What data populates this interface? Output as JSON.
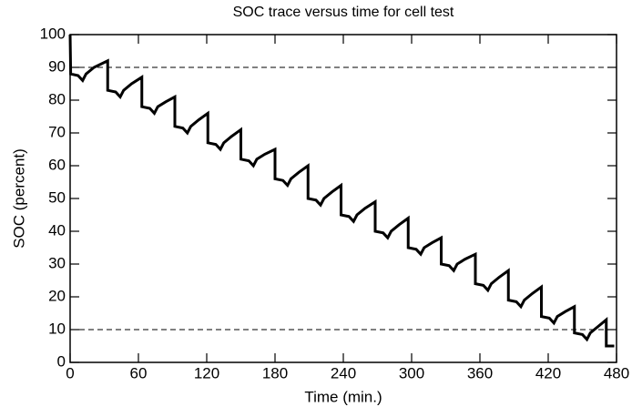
{
  "chart_data": {
    "type": "line",
    "title": "SOC trace versus time for cell test",
    "xlabel": "Time (min.)",
    "ylabel": "SOC (percent)",
    "xlim": [
      0,
      480
    ],
    "xticks": [
      0,
      60,
      120,
      180,
      240,
      300,
      360,
      420,
      480
    ],
    "ylim": [
      0,
      100
    ],
    "yticks": [
      0,
      10,
      20,
      30,
      40,
      50,
      60,
      70,
      80,
      90,
      100
    ],
    "reference_lines": [
      90,
      10
    ],
    "grid": false,
    "series": [
      {
        "color": "#000000",
        "x": [
          0,
          0.5,
          7,
          11,
          14,
          21,
          33,
          33,
          40,
          44,
          47,
          54,
          63,
          63,
          70,
          74,
          77,
          84,
          92,
          92,
          99,
          103,
          106,
          113,
          121,
          121,
          128,
          132,
          135,
          142,
          150,
          150,
          157,
          161,
          164,
          171,
          180,
          180,
          187,
          191,
          194,
          201,
          209,
          209,
          216,
          220,
          223,
          230,
          238,
          238,
          245,
          249,
          252,
          259,
          268,
          268,
          275,
          279,
          282,
          289,
          297,
          297,
          304,
          308,
          311,
          318,
          326,
          326,
          333,
          337,
          340,
          347,
          356,
          356,
          363,
          367,
          370,
          377,
          385,
          385,
          392,
          396,
          399,
          406,
          414,
          414,
          421,
          425,
          428,
          435,
          443,
          443,
          450,
          454,
          457,
          464,
          471,
          471,
          478
        ],
        "values": [
          100,
          88,
          87.5,
          86,
          88,
          90,
          92,
          83,
          82.5,
          81,
          83,
          85,
          87,
          78,
          77.5,
          76,
          78,
          79.5,
          81,
          72,
          71.5,
          70,
          72,
          74,
          76,
          67,
          66.5,
          65,
          67,
          69,
          71,
          62,
          61.5,
          60,
          62,
          63.5,
          65,
          56,
          55.5,
          54,
          56,
          58,
          60,
          50,
          49.5,
          48,
          50,
          52,
          54,
          45,
          44.5,
          43,
          45,
          47,
          49,
          40,
          39.5,
          38,
          40,
          42,
          44,
          35,
          34.5,
          33,
          35,
          36.5,
          38,
          30,
          29.5,
          28,
          30,
          31.5,
          33,
          24,
          23.5,
          22,
          24,
          26,
          28,
          19,
          18.5,
          17,
          19,
          21,
          23,
          14,
          13.5,
          12,
          14,
          15.5,
          17,
          9,
          8.5,
          7,
          9,
          11,
          13,
          5,
          5
        ]
      }
    ]
  }
}
